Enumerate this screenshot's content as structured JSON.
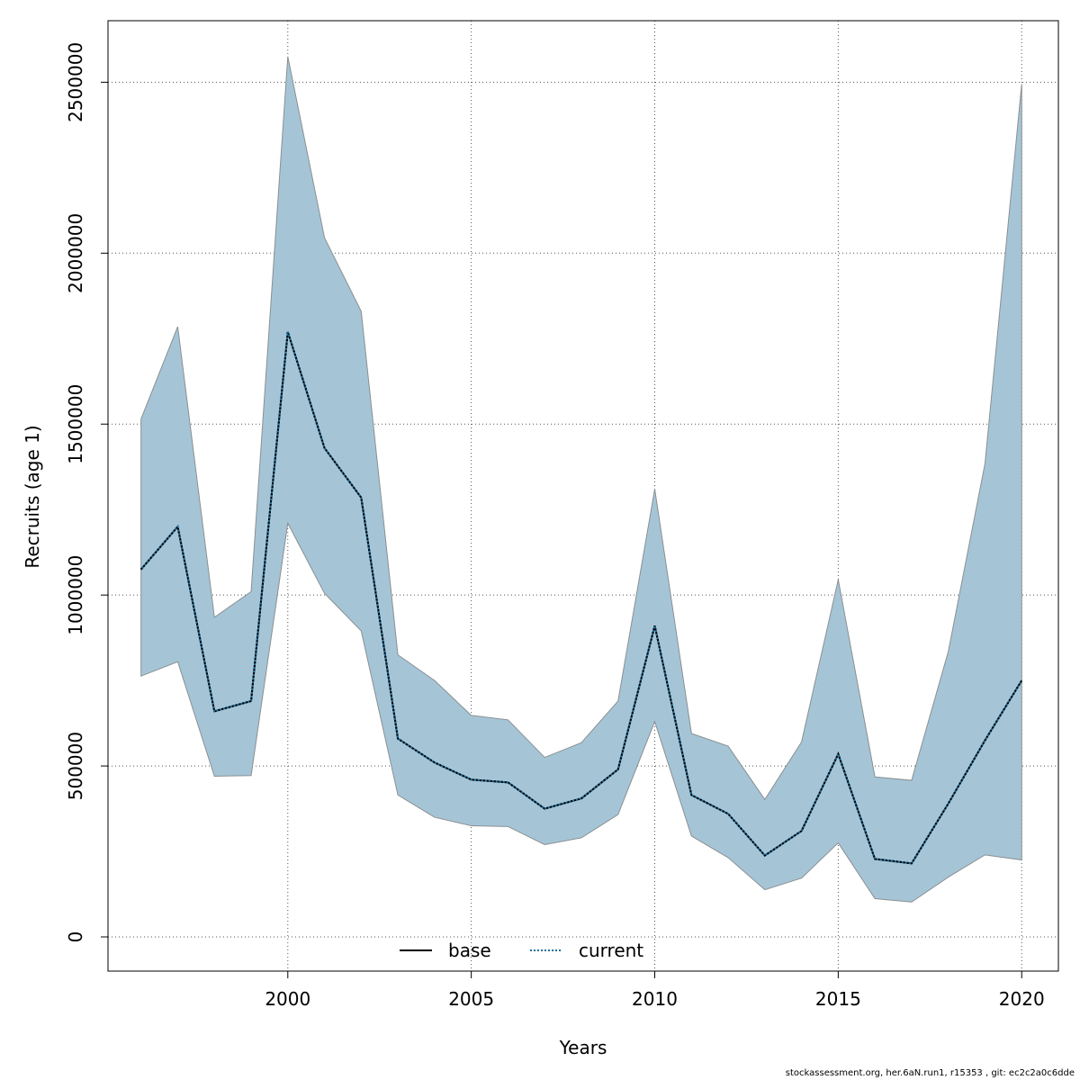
{
  "chart_data": {
    "type": "line",
    "title": "",
    "xlabel": "Years",
    "ylabel": "Recruits (age 1)",
    "xlim": [
      1995.1,
      2021
    ],
    "ylim": [
      -100000,
      2680000
    ],
    "x_ticks": [
      2000,
      2005,
      2010,
      2015,
      2020
    ],
    "y_ticks": [
      0,
      500000,
      1000000,
      1500000,
      2000000,
      2500000
    ],
    "grid": true,
    "x": [
      1996,
      1997,
      1998,
      1999,
      2000,
      2001,
      2002,
      2003,
      2004,
      2005,
      2006,
      2007,
      2008,
      2009,
      2010,
      2011,
      2012,
      2013,
      2014,
      2015,
      2016,
      2017,
      2018,
      2019,
      2020
    ],
    "band": {
      "name": "confidence interval",
      "color": "#a5c5d6",
      "edge_color": "#8a8f92",
      "upper": [
        1515000,
        1785000,
        935000,
        1010000,
        2575000,
        2045000,
        1830000,
        825000,
        750000,
        648000,
        635000,
        525000,
        568000,
        690000,
        1310000,
        595000,
        558000,
        402000,
        570000,
        1045000,
        468000,
        458000,
        835000,
        1385000,
        2495000
      ],
      "lower": [
        763000,
        805000,
        470000,
        472000,
        1210000,
        1005000,
        895000,
        415000,
        350000,
        325000,
        323000,
        270000,
        290000,
        358000,
        630000,
        295000,
        232000,
        138000,
        172000,
        275000,
        112000,
        102000,
        175000,
        240000,
        225000
      ]
    },
    "series": [
      {
        "name": "base",
        "style": "solid",
        "color": "#000000",
        "values": [
          1075000,
          1200000,
          660000,
          690000,
          1770000,
          1430000,
          1285000,
          580000,
          510000,
          460000,
          452000,
          375000,
          405000,
          490000,
          910000,
          415000,
          360000,
          238000,
          310000,
          535000,
          228000,
          215000,
          390000,
          575000,
          750000
        ]
      },
      {
        "name": "current",
        "style": "dotted",
        "color": "#1f6f9f",
        "values": [
          1075000,
          1200000,
          660000,
          690000,
          1770000,
          1430000,
          1285000,
          580000,
          510000,
          460000,
          452000,
          375000,
          405000,
          490000,
          910000,
          415000,
          360000,
          238000,
          310000,
          535000,
          228000,
          215000,
          390000,
          575000,
          750000
        ]
      }
    ],
    "legend": {
      "position": "bottom-center",
      "entries": [
        "base",
        "current"
      ]
    }
  },
  "footer_text": "stockassessment.org, her.6aN.run1, r15353 , git: ec2c2a0c6dde"
}
